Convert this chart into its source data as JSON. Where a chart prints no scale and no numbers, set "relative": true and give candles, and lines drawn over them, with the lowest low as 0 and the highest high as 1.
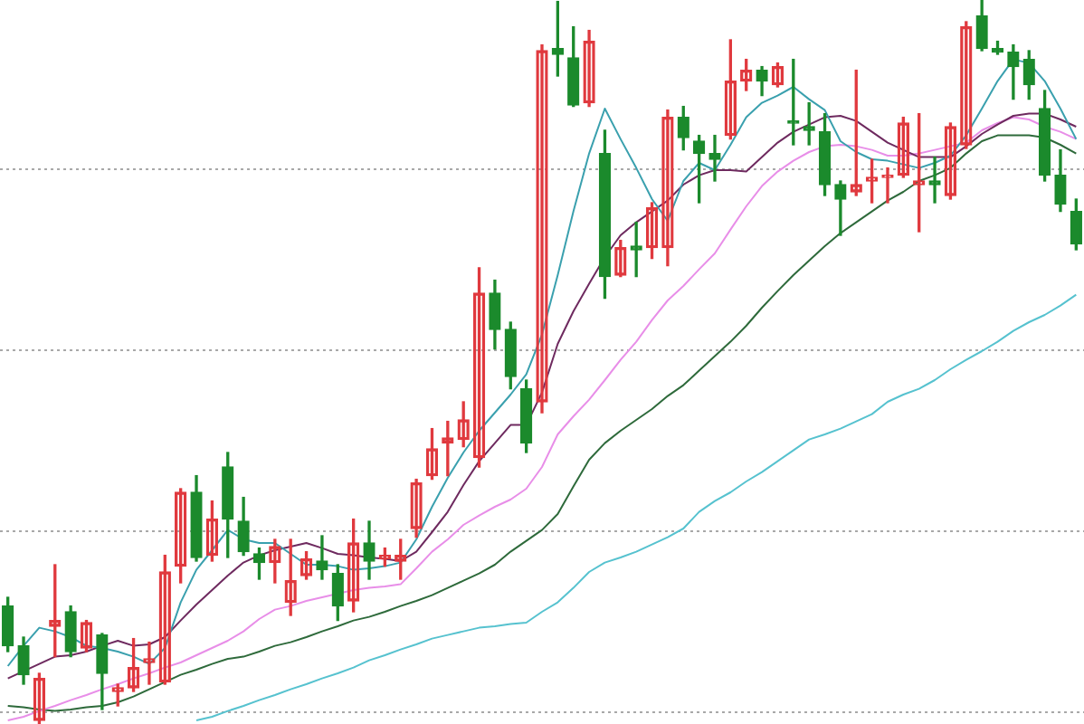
{
  "chart_data": {
    "type": "candlestick",
    "relative": true,
    "grid": "y",
    "categories": [
      null,
      null,
      null,
      null,
      null,
      null,
      null,
      null,
      null,
      null,
      null,
      null,
      null,
      null,
      null,
      null,
      null,
      null,
      null,
      null,
      null,
      null,
      null,
      null,
      null,
      null,
      null,
      null,
      null,
      null,
      null,
      null,
      null,
      null,
      null,
      null,
      null,
      null,
      null,
      null,
      null,
      null,
      null,
      null,
      null,
      null,
      null,
      null,
      null,
      null,
      null,
      null,
      null,
      null,
      null,
      null,
      null,
      null,
      null,
      null,
      null,
      null,
      null,
      null,
      null,
      null,
      null,
      null,
      null
    ],
    "ohlc": [
      [
        0.163,
        0.175,
        0.1,
        0.108
      ],
      [
        0.108,
        0.12,
        0.055,
        0.068
      ],
      [
        0.005,
        0.07,
        0,
        0.063
      ],
      [
        0.135,
        0.22,
        0.093,
        0.143
      ],
      [
        0.155,
        0.163,
        0.093,
        0.1
      ],
      [
        0.105,
        0.143,
        0.1,
        0.14
      ],
      [
        0.123,
        0.125,
        0.02,
        0.07
      ],
      [
        0.045,
        0.055,
        0.025,
        0.05
      ],
      [
        0.05,
        0.118,
        0.045,
        0.078
      ],
      [
        0.085,
        0.113,
        0.055,
        0.09
      ],
      [
        0.058,
        0.233,
        0.055,
        0.21
      ],
      [
        0.218,
        0.325,
        0.195,
        0.32
      ],
      [
        0.32,
        0.343,
        0.225,
        0.23
      ],
      [
        0.233,
        0.308,
        0.225,
        0.283
      ],
      [
        0.355,
        0.375,
        0.23,
        0.283
      ],
      [
        0.28,
        0.313,
        0.233,
        0.238
      ],
      [
        0.235,
        0.243,
        0.2,
        0.223
      ],
      [
        0.223,
        0.255,
        0.195,
        0.245
      ],
      [
        0.168,
        0.255,
        0.15,
        0.198
      ],
      [
        0.205,
        0.238,
        0.2,
        0.228
      ],
      [
        0.225,
        0.26,
        0.2,
        0.213
      ],
      [
        0.208,
        0.22,
        0.143,
        0.163
      ],
      [
        0.17,
        0.283,
        0.155,
        0.25
      ],
      [
        0.25,
        0.28,
        0.2,
        0.225
      ],
      [
        0.228,
        0.243,
        0.218,
        0.233
      ],
      [
        0.225,
        0.255,
        0.2,
        0.233
      ],
      [
        0.27,
        0.338,
        0.258,
        0.333
      ],
      [
        0.343,
        0.408,
        0.338,
        0.38
      ],
      [
        0.388,
        0.418,
        0.343,
        0.395
      ],
      [
        0.393,
        0.445,
        0.383,
        0.42
      ],
      [
        0.368,
        0.63,
        0.355,
        0.595
      ],
      [
        0.595,
        0.613,
        0.518,
        0.545
      ],
      [
        0.545,
        0.555,
        0.463,
        0.48
      ],
      [
        0.463,
        0.475,
        0.375,
        0.388
      ],
      [
        0.445,
        0.938,
        0.43,
        0.93
      ],
      [
        0.933,
        0.998,
        0.895,
        0.925
      ],
      [
        0.92,
        0.963,
        0.853,
        0.855
      ],
      [
        0.858,
        0.958,
        0.853,
        0.943
      ],
      [
        0.788,
        0.82,
        0.588,
        0.618
      ],
      [
        0.62,
        0.668,
        0.618,
        0.658
      ],
      [
        0.66,
        0.693,
        0.618,
        0.655
      ],
      [
        0.658,
        0.72,
        0.643,
        0.713
      ],
      [
        0.658,
        0.848,
        0.633,
        0.838
      ],
      [
        0.838,
        0.853,
        0.793,
        0.81
      ],
      [
        0.805,
        0.813,
        0.72,
        0.788
      ],
      [
        0.788,
        0.813,
        0.75,
        0.78
      ],
      [
        0.813,
        0.945,
        0.808,
        0.888
      ],
      [
        0.888,
        0.918,
        0.875,
        0.903
      ],
      [
        0.903,
        0.908,
        0.868,
        0.888
      ],
      [
        0.883,
        0.913,
        0.88,
        0.908
      ],
      [
        0.833,
        0.918,
        0.8,
        0.83
      ],
      [
        0.825,
        0.858,
        0.8,
        0.82
      ],
      [
        0.818,
        0.843,
        0.73,
        0.745
      ],
      [
        0.745,
        0.75,
        0.675,
        0.725
      ],
      [
        0.735,
        0.903,
        0.73,
        0.745
      ],
      [
        0.75,
        0.78,
        0.72,
        0.755
      ],
      [
        0.755,
        0.768,
        0.72,
        0.758
      ],
      [
        0.758,
        0.838,
        0.755,
        0.83
      ],
      [
        0.745,
        0.843,
        0.68,
        0.75
      ],
      [
        0.75,
        0.783,
        0.72,
        0.745
      ],
      [
        0.73,
        0.83,
        0.725,
        0.825
      ],
      [
        0.8,
        0.97,
        0.795,
        0.963
      ],
      [
        0.978,
        1,
        0.93,
        0.933
      ],
      [
        0.933,
        0.943,
        0.925,
        0.928
      ],
      [
        0.928,
        0.938,
        0.863,
        0.908
      ],
      [
        0.918,
        0.93,
        0.863,
        0.883
      ],
      [
        0.85,
        0.875,
        0.75,
        0.758
      ],
      [
        0.758,
        0.793,
        0.708,
        0.718
      ],
      [
        0.708,
        0.725,
        0.655,
        0.663
      ]
    ],
    "colors": [
      "#1b8a2c",
      "#1b8a2c",
      "#e0393e",
      "#e0393e",
      "#1b8a2c",
      "#e0393e",
      "#1b8a2c",
      "#e0393e",
      "#e0393e",
      "#e0393e",
      "#e0393e",
      "#e0393e",
      "#1b8a2c",
      "#e0393e",
      "#1b8a2c",
      "#1b8a2c",
      "#1b8a2c",
      "#e0393e",
      "#e0393e",
      "#e0393e",
      "#1b8a2c",
      "#1b8a2c",
      "#e0393e",
      "#1b8a2c",
      "#e0393e",
      "#e0393e",
      "#e0393e",
      "#e0393e",
      "#e0393e",
      "#e0393e",
      "#e0393e",
      "#1b8a2c",
      "#1b8a2c",
      "#1b8a2c",
      "#e0393e",
      "#1b8a2c",
      "#1b8a2c",
      "#e0393e",
      "#1b8a2c",
      "#e0393e",
      "#1b8a2c",
      "#e0393e",
      "#e0393e",
      "#1b8a2c",
      "#1b8a2c",
      "#1b8a2c",
      "#e0393e",
      "#e0393e",
      "#1b8a2c",
      "#e0393e",
      "#1b8a2c",
      "#1b8a2c",
      "#1b8a2c",
      "#1b8a2c",
      "#e0393e",
      "#e0393e",
      "#e0393e",
      "#e0393e",
      "#e0393e",
      "#1b8a2c",
      "#e0393e",
      "#e0393e",
      "#1b8a2c",
      "#1b8a2c",
      "#1b8a2c",
      "#1b8a2c",
      "#1b8a2c",
      "#1b8a2c",
      "#1b8a2c"
    ],
    "series": [
      {
        "type": "line",
        "color": "#3aa0ae",
        "values": [
          0.08,
          0.108,
          0.133,
          0.128,
          0.12,
          0.108,
          0.105,
          0.1,
          0.093,
          0.083,
          0.105,
          0.168,
          0.213,
          0.24,
          0.268,
          0.255,
          0.25,
          0.25,
          0.235,
          0.22,
          0.22,
          0.218,
          0.213,
          0.215,
          0.218,
          0.223,
          0.255,
          0.3,
          0.34,
          0.375,
          0.405,
          0.43,
          0.455,
          0.483,
          0.538,
          0.62,
          0.708,
          0.788,
          0.85,
          0.808,
          0.768,
          0.725,
          0.695,
          0.75,
          0.775,
          0.765,
          0.8,
          0.838,
          0.858,
          0.868,
          0.88,
          0.863,
          0.848,
          0.805,
          0.79,
          0.78,
          0.778,
          0.773,
          0.768,
          0.775,
          0.785,
          0.813,
          0.85,
          0.888,
          0.918,
          0.913,
          0.888,
          0.85,
          0.808
        ]
      },
      {
        "type": "line",
        "color": "#6e2a5f",
        "values": [
          0.063,
          0.073,
          0.083,
          0.093,
          0.095,
          0.1,
          0.108,
          0.115,
          0.108,
          0.11,
          0.12,
          0.143,
          0.165,
          0.185,
          0.205,
          0.223,
          0.233,
          0.24,
          0.245,
          0.25,
          0.243,
          0.235,
          0.233,
          0.23,
          0.228,
          0.225,
          0.238,
          0.265,
          0.293,
          0.33,
          0.363,
          0.388,
          0.413,
          0.413,
          0.458,
          0.525,
          0.57,
          0.608,
          0.645,
          0.675,
          0.693,
          0.708,
          0.723,
          0.745,
          0.758,
          0.765,
          0.765,
          0.763,
          0.783,
          0.803,
          0.818,
          0.828,
          0.838,
          0.84,
          0.833,
          0.818,
          0.803,
          0.793,
          0.783,
          0.783,
          0.783,
          0.798,
          0.815,
          0.828,
          0.84,
          0.843,
          0.843,
          0.835,
          0.825
        ]
      },
      {
        "type": "line",
        "color": "#e88ee8",
        "values": [
          0.005,
          0.01,
          0.018,
          0.025,
          0.033,
          0.04,
          0.048,
          0.055,
          0.063,
          0.07,
          0.078,
          0.085,
          0.095,
          0.105,
          0.115,
          0.128,
          0.145,
          0.158,
          0.163,
          0.17,
          0.175,
          0.18,
          0.185,
          0.188,
          0.19,
          0.193,
          0.215,
          0.238,
          0.255,
          0.275,
          0.288,
          0.3,
          0.31,
          0.325,
          0.355,
          0.4,
          0.425,
          0.448,
          0.475,
          0.503,
          0.528,
          0.558,
          0.585,
          0.605,
          0.628,
          0.65,
          0.683,
          0.715,
          0.743,
          0.763,
          0.778,
          0.79,
          0.798,
          0.8,
          0.798,
          0.793,
          0.785,
          0.785,
          0.788,
          0.793,
          0.798,
          0.803,
          0.82,
          0.83,
          0.838,
          0.835,
          0.825,
          0.818,
          0.808
        ]
      },
      {
        "type": "line",
        "color": "#2e6a3b",
        "values": [
          0.025,
          0.023,
          0.02,
          0.018,
          0.02,
          0.023,
          0.025,
          0.03,
          0.038,
          0.048,
          0.058,
          0.068,
          0.075,
          0.083,
          0.09,
          0.093,
          0.1,
          0.108,
          0.113,
          0.12,
          0.128,
          0.135,
          0.143,
          0.148,
          0.155,
          0.163,
          0.17,
          0.178,
          0.188,
          0.198,
          0.208,
          0.22,
          0.238,
          0.253,
          0.268,
          0.29,
          0.328,
          0.365,
          0.388,
          0.405,
          0.42,
          0.435,
          0.453,
          0.468,
          0.488,
          0.508,
          0.528,
          0.55,
          0.575,
          0.598,
          0.62,
          0.64,
          0.66,
          0.678,
          0.693,
          0.708,
          0.723,
          0.735,
          0.75,
          0.758,
          0.768,
          0.788,
          0.805,
          0.813,
          0.813,
          0.813,
          0.81,
          0.8,
          0.788
        ]
      },
      {
        "type": "line",
        "color": "#56c2cf",
        "values": [
          null,
          null,
          null,
          null,
          null,
          null,
          null,
          null,
          null,
          null,
          null,
          null,
          0.005,
          0.01,
          0.018,
          0.025,
          0.033,
          0.04,
          0.048,
          0.055,
          0.063,
          0.07,
          0.078,
          0.088,
          0.095,
          0.103,
          0.11,
          0.118,
          0.123,
          0.128,
          0.133,
          0.135,
          0.138,
          0.14,
          0.155,
          0.168,
          0.188,
          0.21,
          0.223,
          0.23,
          0.238,
          0.248,
          0.258,
          0.27,
          0.293,
          0.308,
          0.32,
          0.335,
          0.348,
          0.363,
          0.378,
          0.393,
          0.4,
          0.408,
          0.418,
          0.428,
          0.445,
          0.455,
          0.463,
          0.475,
          0.49,
          0.503,
          0.515,
          0.528,
          0.543,
          0.555,
          0.565,
          0.578,
          0.593
        ]
      }
    ]
  }
}
